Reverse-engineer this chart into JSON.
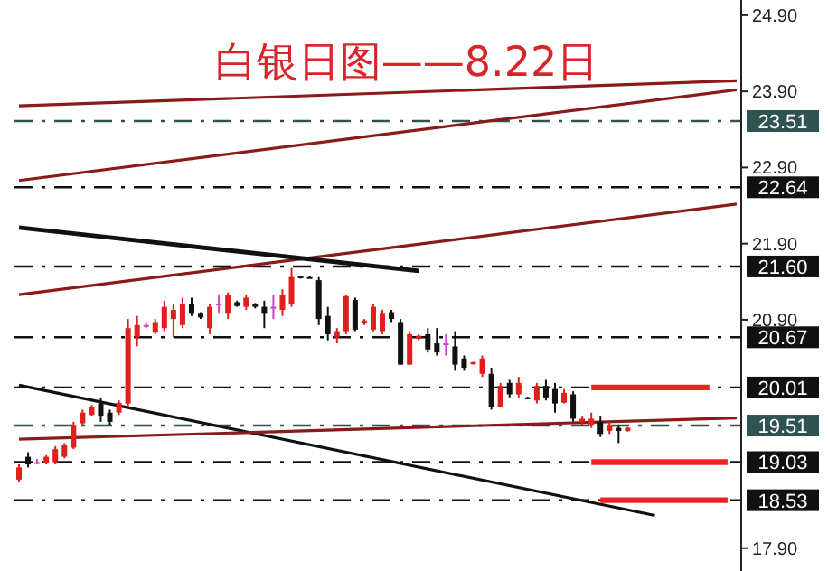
{
  "chart_data": {
    "type": "candlestick",
    "title": "白银日图——8.22日",
    "tick_labels": "y",
    "ylim": [
      17.6,
      25.1
    ],
    "yticks": [
      {
        "value": 24.9,
        "label": "24.90"
      },
      {
        "value": 23.9,
        "label": "23.90"
      },
      {
        "value": 22.9,
        "label": "22.90"
      },
      {
        "value": 21.9,
        "label": "21.90"
      },
      {
        "value": 20.9,
        "label": "20.90"
      },
      {
        "value": 17.9,
        "label": "17.90"
      }
    ],
    "categories": [
      null,
      null,
      null,
      null,
      null,
      null,
      null,
      null,
      null,
      null,
      null,
      null,
      null,
      null,
      null,
      null,
      null,
      null,
      null,
      null,
      null,
      null,
      null,
      null,
      null,
      null,
      null,
      null,
      null,
      null,
      null,
      null,
      null,
      null,
      null,
      null,
      null,
      null,
      null,
      null,
      null,
      null,
      null,
      null,
      null,
      null,
      null,
      null,
      null,
      null,
      null,
      null,
      null,
      null,
      null,
      null,
      null,
      null,
      null,
      null,
      null,
      null,
      null,
      null,
      null,
      null,
      null,
      null,
      null,
      null,
      null,
      null,
      null,
      null,
      null,
      null,
      null,
      null,
      null,
      null
    ],
    "ohlc": [
      [
        18.8,
        19.0,
        18.77,
        18.96
      ],
      [
        19.1,
        19.16,
        18.96,
        19.0
      ],
      [
        19.03,
        19.07,
        19.0,
        19.03
      ],
      [
        19.02,
        19.12,
        19.0,
        19.1
      ],
      [
        19.03,
        19.24,
        19.0,
        19.2
      ],
      [
        19.1,
        19.28,
        19.08,
        19.26
      ],
      [
        19.22,
        19.56,
        19.2,
        19.52
      ],
      [
        19.54,
        19.72,
        19.52,
        19.68
      ],
      [
        19.65,
        19.78,
        19.64,
        19.76
      ],
      [
        19.8,
        19.88,
        19.56,
        19.64
      ],
      [
        19.68,
        19.72,
        19.52,
        19.56
      ],
      [
        19.68,
        19.84,
        19.65,
        19.81
      ],
      [
        19.8,
        20.91,
        19.76,
        20.79
      ],
      [
        20.67,
        20.95,
        20.55,
        20.83
      ],
      [
        20.83,
        20.87,
        20.79,
        20.83
      ],
      [
        20.73,
        20.91,
        20.71,
        20.87
      ],
      [
        20.79,
        21.15,
        20.75,
        21.07
      ],
      [
        20.91,
        21.11,
        20.67,
        21.03
      ],
      [
        20.83,
        21.19,
        20.79,
        21.11
      ],
      [
        21.11,
        21.19,
        20.95,
        20.99
      ],
      [
        20.99,
        21.0,
        20.91,
        20.93
      ],
      [
        20.79,
        21.11,
        20.71,
        21.07
      ],
      [
        21.11,
        21.23,
        20.99,
        21.11
      ],
      [
        20.99,
        21.26,
        20.91,
        21.23
      ],
      [
        21.13,
        21.15,
        21.07,
        21.08
      ],
      [
        21.07,
        21.23,
        21.03,
        21.19
      ],
      [
        21.11,
        21.12,
        21.05,
        21.07
      ],
      [
        21.07,
        21.15,
        20.79,
        20.99
      ],
      [
        21.07,
        21.23,
        20.91,
        21.07
      ],
      [
        21.03,
        21.3,
        20.95,
        21.23
      ],
      [
        21.11,
        21.58,
        21.07,
        21.46
      ],
      [
        21.47,
        21.48,
        21.44,
        21.45
      ],
      [
        21.46,
        21.47,
        21.45,
        21.45
      ],
      [
        21.42,
        21.46,
        20.83,
        20.91
      ],
      [
        20.95,
        21.07,
        20.63,
        20.71
      ],
      [
        20.67,
        20.79,
        20.59,
        20.75
      ],
      [
        20.75,
        21.23,
        20.71,
        21.21
      ],
      [
        21.16,
        21.19,
        20.75,
        20.77
      ],
      [
        20.85,
        20.91,
        20.83,
        20.89
      ],
      [
        20.77,
        21.11,
        20.75,
        21.07
      ],
      [
        20.75,
        21.03,
        20.71,
        20.99
      ],
      [
        21.0,
        21.03,
        20.87,
        20.91
      ],
      [
        20.87,
        20.91,
        20.31,
        20.31
      ],
      [
        20.31,
        20.75,
        20.31,
        20.71
      ],
      [
        20.65,
        20.71,
        20.63,
        20.69
      ],
      [
        20.71,
        20.79,
        20.47,
        20.51
      ],
      [
        20.59,
        20.79,
        20.43,
        20.47
      ],
      [
        20.59,
        20.71,
        20.43,
        20.59
      ],
      [
        20.55,
        20.75,
        20.23,
        20.31
      ],
      [
        20.39,
        20.43,
        20.23,
        20.27
      ],
      [
        20.32,
        20.35,
        20.31,
        20.34
      ],
      [
        20.19,
        20.43,
        20.15,
        20.39
      ],
      [
        20.19,
        20.27,
        19.72,
        19.76
      ],
      [
        19.76,
        20.07,
        19.76,
        20.03
      ],
      [
        20.07,
        20.11,
        19.88,
        19.92
      ],
      [
        19.92,
        20.15,
        19.88,
        20.07
      ],
      [
        19.88,
        19.89,
        19.86,
        19.87
      ],
      [
        19.84,
        20.07,
        19.8,
        20.03
      ],
      [
        20.03,
        20.11,
        19.84,
        19.88
      ],
      [
        19.99,
        20.07,
        19.68,
        19.8
      ],
      [
        19.81,
        19.99,
        19.8,
        19.94
      ],
      [
        19.92,
        19.96,
        19.56,
        19.6
      ],
      [
        19.56,
        19.64,
        19.52,
        19.6
      ],
      [
        19.52,
        19.68,
        19.48,
        19.6
      ],
      [
        19.56,
        19.64,
        19.36,
        19.4
      ],
      [
        19.44,
        19.56,
        19.4,
        19.52
      ],
      [
        19.48,
        19.52,
        19.28,
        19.44
      ],
      [
        19.44,
        19.49,
        19.43,
        19.48
      ],
      null,
      null,
      null,
      null,
      null,
      null,
      null,
      null,
      null,
      null,
      null,
      null
    ],
    "colors": [
      "#e0201b",
      "#111111",
      "#cc44cc",
      "#e0201b",
      "#e0201b",
      "#e0201b",
      "#e0201b",
      "#e0201b",
      "#e0201b",
      "#111111",
      "#111111",
      "#e0201b",
      "#e0201b",
      "#e0201b",
      "#cc44cc",
      "#e0201b",
      "#e0201b",
      "#e0201b",
      "#e0201b",
      "#111111",
      "#111111",
      "#e0201b",
      "#cc44cc",
      "#e0201b",
      "#111111",
      "#e0201b",
      "#111111",
      "#111111",
      "#cc44cc",
      "#e0201b",
      "#e0201b",
      "#111111",
      "#111111",
      "#111111",
      "#111111",
      "#e0201b",
      "#e0201b",
      "#111111",
      "#e0201b",
      "#e0201b",
      "#e0201b",
      "#111111",
      "#111111",
      "#e0201b",
      "#e0201b",
      "#111111",
      "#111111",
      "#cc44cc",
      "#111111",
      "#111111",
      "#e0201b",
      "#e0201b",
      "#111111",
      "#e0201b",
      "#111111",
      "#e0201b",
      "#111111",
      "#e0201b",
      "#111111",
      "#111111",
      "#e0201b",
      "#111111",
      "#e0201b",
      "#e0201b",
      "#111111",
      "#e0201b",
      "#111111",
      "#e0201b",
      null,
      null,
      null,
      null,
      null,
      null,
      null,
      null,
      null,
      null,
      null,
      null
    ],
    "series": [
      {
        "type": "line",
        "color": "#8b1a1a",
        "values": [
          23.71,
          null,
          null,
          null,
          null,
          null,
          null,
          null,
          null,
          null,
          null,
          null,
          null,
          null,
          null,
          null,
          null,
          null,
          null,
          null,
          null,
          null,
          null,
          null,
          null,
          null,
          null,
          null,
          null,
          null,
          null,
          null,
          null,
          null,
          null,
          null,
          null,
          null,
          null,
          null,
          null,
          null,
          null,
          null,
          null,
          null,
          null,
          null,
          null,
          null,
          null,
          null,
          null,
          null,
          null,
          null,
          null,
          null,
          null,
          null,
          null,
          null,
          null,
          null,
          null,
          null,
          null,
          null,
          null,
          null,
          null,
          null,
          null,
          null,
          null,
          null,
          null,
          null,
          null,
          24.04
        ]
      },
      {
        "type": "line",
        "color": "#8b1a1a",
        "values": [
          22.73,
          null,
          null,
          null,
          null,
          null,
          null,
          null,
          null,
          null,
          null,
          null,
          null,
          null,
          null,
          null,
          null,
          null,
          null,
          null,
          null,
          null,
          null,
          null,
          null,
          null,
          null,
          null,
          null,
          null,
          null,
          null,
          null,
          null,
          null,
          null,
          null,
          null,
          null,
          null,
          null,
          null,
          null,
          null,
          null,
          null,
          null,
          null,
          null,
          null,
          null,
          null,
          null,
          null,
          null,
          null,
          null,
          null,
          null,
          null,
          null,
          null,
          null,
          null,
          null,
          null,
          null,
          null,
          null,
          null,
          null,
          null,
          null,
          null,
          null,
          null,
          null,
          null,
          null,
          23.92
        ]
      },
      {
        "type": "line",
        "color": "#8b1a1a",
        "values": [
          21.23,
          null,
          null,
          null,
          null,
          null,
          null,
          null,
          null,
          null,
          null,
          null,
          null,
          null,
          null,
          null,
          null,
          null,
          null,
          null,
          null,
          null,
          null,
          null,
          null,
          null,
          null,
          null,
          null,
          null,
          null,
          null,
          null,
          null,
          null,
          null,
          null,
          null,
          null,
          null,
          null,
          null,
          null,
          null,
          null,
          null,
          null,
          null,
          null,
          null,
          null,
          null,
          null,
          null,
          null,
          null,
          null,
          null,
          null,
          null,
          null,
          null,
          null,
          null,
          null,
          null,
          null,
          null,
          null,
          null,
          null,
          null,
          null,
          null,
          null,
          null,
          null,
          null,
          null,
          22.42
        ]
      },
      {
        "type": "line",
        "color": "#111111",
        "values": [
          22.11,
          null,
          null,
          null,
          null,
          null,
          null,
          null,
          null,
          null,
          null,
          null,
          null,
          null,
          null,
          null,
          null,
          null,
          null,
          null,
          null,
          null,
          null,
          null,
          null,
          null,
          null,
          null,
          null,
          null,
          null,
          null,
          null,
          null,
          null,
          null,
          null,
          null,
          null,
          null,
          null,
          null,
          null,
          null,
          21.54,
          null,
          null,
          null,
          null,
          null,
          null,
          null,
          null,
          null,
          null,
          null,
          null,
          null,
          null,
          null,
          null,
          null,
          null,
          null,
          null,
          null,
          null,
          null,
          null,
          null,
          null,
          null,
          null,
          null,
          null,
          null,
          null,
          null,
          null,
          null
        ]
      },
      {
        "type": "line",
        "color": "#111111",
        "values": [
          20.04,
          null,
          null,
          null,
          null,
          null,
          null,
          null,
          null,
          null,
          null,
          null,
          null,
          null,
          null,
          null,
          null,
          null,
          null,
          null,
          null,
          null,
          null,
          null,
          null,
          null,
          null,
          null,
          null,
          null,
          null,
          null,
          null,
          null,
          null,
          null,
          null,
          null,
          null,
          null,
          null,
          null,
          null,
          null,
          null,
          null,
          null,
          null,
          null,
          null,
          null,
          null,
          null,
          null,
          null,
          null,
          null,
          null,
          null,
          null,
          null,
          null,
          null,
          null,
          null,
          null,
          null,
          null,
          null,
          null,
          18.33,
          null,
          null,
          null,
          null,
          null,
          null,
          null,
          null,
          null
        ]
      },
      {
        "type": "line",
        "color": "#8b1a1a",
        "values": [
          19.33,
          null,
          null,
          null,
          null,
          null,
          null,
          null,
          null,
          null,
          null,
          null,
          null,
          null,
          null,
          null,
          null,
          null,
          null,
          null,
          null,
          null,
          null,
          null,
          null,
          null,
          null,
          null,
          null,
          null,
          null,
          null,
          null,
          null,
          null,
          null,
          null,
          null,
          null,
          null,
          null,
          null,
          null,
          null,
          null,
          null,
          null,
          null,
          null,
          null,
          null,
          null,
          null,
          null,
          null,
          null,
          null,
          null,
          null,
          null,
          null,
          null,
          null,
          null,
          null,
          null,
          null,
          null,
          null,
          null,
          null,
          null,
          null,
          null,
          null,
          null,
          null,
          null,
          null,
          19.61
        ]
      },
      {
        "type": "line",
        "color": "#ee2222",
        "values": [
          null,
          null,
          null,
          null,
          null,
          null,
          null,
          null,
          null,
          null,
          null,
          null,
          null,
          null,
          null,
          null,
          null,
          null,
          null,
          null,
          null,
          null,
          null,
          null,
          null,
          null,
          null,
          null,
          null,
          null,
          null,
          null,
          null,
          null,
          null,
          null,
          null,
          null,
          null,
          null,
          null,
          null,
          null,
          null,
          null,
          null,
          null,
          null,
          null,
          null,
          null,
          null,
          null,
          null,
          null,
          null,
          null,
          null,
          null,
          null,
          null,
          null,
          null,
          20.01,
          null,
          null,
          null,
          null,
          null,
          null,
          null,
          null,
          null,
          null,
          null,
          null,
          20.01,
          null,
          null,
          null
        ]
      },
      {
        "type": "line",
        "color": "#ee2222",
        "values": [
          null,
          null,
          null,
          null,
          null,
          null,
          null,
          null,
          null,
          null,
          null,
          null,
          null,
          null,
          null,
          null,
          null,
          null,
          null,
          null,
          null,
          null,
          null,
          null,
          null,
          null,
          null,
          null,
          null,
          null,
          null,
          null,
          null,
          null,
          null,
          null,
          null,
          null,
          null,
          null,
          null,
          null,
          null,
          null,
          null,
          null,
          null,
          null,
          null,
          null,
          null,
          null,
          null,
          null,
          null,
          null,
          null,
          null,
          null,
          null,
          null,
          null,
          null,
          19.03,
          null,
          null,
          null,
          null,
          null,
          null,
          null,
          null,
          null,
          null,
          null,
          null,
          null,
          null,
          19.03,
          null
        ]
      },
      {
        "type": "line",
        "color": "#ee2222",
        "values": [
          null,
          null,
          null,
          null,
          null,
          null,
          null,
          null,
          null,
          null,
          null,
          null,
          null,
          null,
          null,
          null,
          null,
          null,
          null,
          null,
          null,
          null,
          null,
          null,
          null,
          null,
          null,
          null,
          null,
          null,
          null,
          null,
          null,
          null,
          null,
          null,
          null,
          null,
          null,
          null,
          null,
          null,
          null,
          null,
          null,
          null,
          null,
          null,
          null,
          null,
          null,
          null,
          null,
          null,
          null,
          null,
          null,
          null,
          null,
          null,
          null,
          null,
          null,
          null,
          18.53,
          null,
          null,
          null,
          null,
          null,
          null,
          null,
          null,
          null,
          null,
          null,
          null,
          null,
          18.53,
          null
        ]
      }
    ],
    "ref_lines": [
      {
        "axis": "y",
        "value": 23.51,
        "label": "23.51",
        "color": "#2f5350",
        "line_style": "dashed"
      },
      {
        "axis": "y",
        "value": 22.64,
        "label": "22.64",
        "color": "#111111",
        "line_style": "dashed"
      },
      {
        "axis": "y",
        "value": 21.6,
        "label": "21.60",
        "color": "#111111",
        "line_style": "dashed"
      },
      {
        "axis": "y",
        "value": 20.67,
        "label": "20.67",
        "color": "#111111",
        "line_style": "dashed"
      },
      {
        "axis": "y",
        "value": 20.01,
        "label": "20.01",
        "color": "#111111",
        "line_style": "dashed"
      },
      {
        "axis": "y",
        "value": 19.51,
        "label": "19.51",
        "color": "#2f5350",
        "line_style": "dashed"
      },
      {
        "axis": "y",
        "value": 19.03,
        "label": "19.03",
        "color": "#111111",
        "line_style": "dashed"
      },
      {
        "axis": "y",
        "value": 18.53,
        "label": "18.53",
        "color": "#111111",
        "line_style": "dashed"
      }
    ]
  }
}
